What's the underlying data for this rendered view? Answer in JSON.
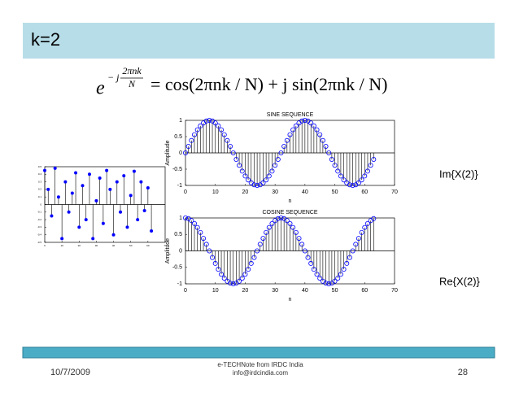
{
  "slide": {
    "title": "k=2",
    "formula": {
      "base": "e",
      "exp_sign": "− j",
      "exp_num": "2πnk",
      "exp_den": "N",
      "rhs": "= cos(2πnk / N) + j sin(2πnk / N)"
    },
    "im_label": "Im{X(2)}",
    "re_label": "Re{X(2)}",
    "footer": {
      "date": "10/7/2009",
      "source": "e-TECHNote from IRDC India",
      "email": "info@irdcindia.com",
      "page": "28"
    }
  },
  "chart_data": [
    {
      "type": "stem",
      "title": "SINE SEQUENCE",
      "xlabel": "n",
      "ylabel": "Amplitude",
      "color": "#0000ff",
      "x": [
        0,
        1,
        2,
        3,
        4,
        5,
        6,
        7,
        8,
        9,
        10,
        11,
        12,
        13,
        14,
        15,
        16,
        17,
        18,
        19,
        20,
        21,
        22,
        23,
        24,
        25,
        26,
        27,
        28,
        29,
        30,
        31,
        32,
        33,
        34,
        35,
        36,
        37,
        38,
        39,
        40,
        41,
        42,
        43,
        44,
        45,
        46,
        47,
        48,
        49,
        50,
        51,
        52,
        53,
        54,
        55,
        56,
        57,
        58,
        59,
        60,
        61,
        62,
        63
      ],
      "values": [
        0,
        0.2,
        0.38,
        0.56,
        0.71,
        0.83,
        0.92,
        0.98,
        1,
        0.98,
        0.92,
        0.83,
        0.71,
        0.56,
        0.38,
        0.2,
        0,
        -0.2,
        -0.38,
        -0.56,
        -0.71,
        -0.83,
        -0.92,
        -0.98,
        -1,
        -0.98,
        -0.92,
        -0.83,
        -0.71,
        -0.56,
        -0.38,
        -0.2,
        0,
        0.2,
        0.38,
        0.56,
        0.71,
        0.83,
        0.92,
        0.98,
        1,
        0.98,
        0.92,
        0.83,
        0.71,
        0.56,
        0.38,
        0.2,
        0,
        -0.2,
        -0.38,
        -0.56,
        -0.71,
        -0.83,
        -0.92,
        -0.98,
        -1,
        -0.98,
        -0.92,
        -0.83,
        -0.71,
        -0.56,
        -0.38,
        -0.2
      ],
      "xlim": [
        0,
        70
      ],
      "xticks": [
        0,
        10,
        20,
        30,
        40,
        50,
        60,
        70
      ],
      "ylim": [
        -1,
        1
      ],
      "yticks": [
        -1,
        -0.5,
        0,
        0.5,
        1
      ]
    },
    {
      "type": "stem",
      "title": "COSINE SEQUENCE",
      "xlabel": "n",
      "ylabel": "Amplitude",
      "color": "#0000ff",
      "x": [
        0,
        1,
        2,
        3,
        4,
        5,
        6,
        7,
        8,
        9,
        10,
        11,
        12,
        13,
        14,
        15,
        16,
        17,
        18,
        19,
        20,
        21,
        22,
        23,
        24,
        25,
        26,
        27,
        28,
        29,
        30,
        31,
        32,
        33,
        34,
        35,
        36,
        37,
        38,
        39,
        40,
        41,
        42,
        43,
        44,
        45,
        46,
        47,
        48,
        49,
        50,
        51,
        52,
        53,
        54,
        55,
        56,
        57,
        58,
        59,
        60,
        61,
        62,
        63
      ],
      "values": [
        1,
        0.98,
        0.92,
        0.83,
        0.71,
        0.56,
        0.38,
        0.2,
        0,
        -0.2,
        -0.38,
        -0.56,
        -0.71,
        -0.83,
        -0.92,
        -0.98,
        -1,
        -0.98,
        -0.92,
        -0.83,
        -0.71,
        -0.56,
        -0.38,
        -0.2,
        0,
        0.2,
        0.38,
        0.56,
        0.71,
        0.83,
        0.92,
        0.98,
        1,
        0.98,
        0.92,
        0.83,
        0.71,
        0.56,
        0.38,
        0.2,
        0,
        -0.2,
        -0.38,
        -0.56,
        -0.71,
        -0.83,
        -0.92,
        -0.98,
        -1,
        -0.98,
        -0.92,
        -0.83,
        -0.71,
        -0.56,
        -0.38,
        -0.2,
        0,
        0.2,
        0.38,
        0.56,
        0.71,
        0.83,
        0.92,
        0.98
      ],
      "xlim": [
        0,
        70
      ],
      "xticks": [
        0,
        10,
        20,
        30,
        40,
        50,
        60,
        70
      ],
      "ylim": [
        -1,
        1
      ],
      "yticks": [
        -1,
        -0.5,
        0,
        0.5,
        1
      ]
    },
    {
      "type": "stem",
      "color": "#0000ff",
      "x": [
        0,
        2,
        4,
        6,
        8,
        10,
        12,
        14,
        16,
        18,
        20,
        22,
        24,
        26,
        28,
        30,
        32,
        34,
        36,
        38,
        40,
        42,
        44,
        46,
        48,
        50,
        52,
        54,
        56,
        58,
        60,
        62
      ],
      "values": [
        0.45,
        0.2,
        -0.15,
        0.48,
        0.1,
        -0.45,
        0.3,
        -0.1,
        0.15,
        0.42,
        -0.3,
        0.25,
        -0.2,
        0.4,
        -0.45,
        0.05,
        0.35,
        -0.25,
        0.45,
        0.2,
        -0.4,
        0.3,
        -0.1,
        0.38,
        -0.3,
        0.12,
        0.44,
        -0.2,
        0.3,
        -0.08,
        0.22,
        -0.35
      ],
      "xlim": [
        0,
        70
      ],
      "xticks": [
        0,
        10,
        20,
        30,
        40,
        50,
        60,
        70
      ],
      "ylim": [
        -0.5,
        0.5
      ],
      "yticks": [
        -0.5,
        -0.4,
        -0.3,
        -0.2,
        -0.1,
        0,
        0.1,
        0.2,
        0.3,
        0.4,
        0.5
      ]
    }
  ]
}
